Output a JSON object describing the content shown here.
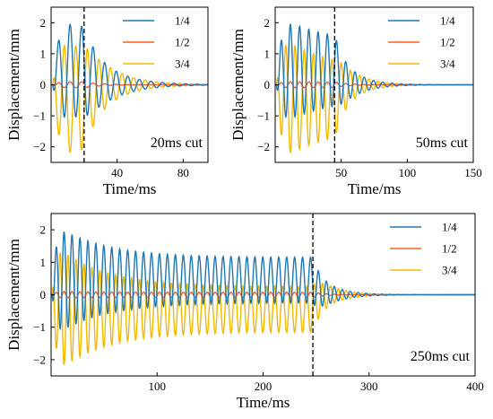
{
  "chart_data": [
    {
      "type": "line",
      "cut_ms": 20,
      "xlim": [
        0,
        95
      ],
      "ylim": [
        -2.5,
        2.5
      ],
      "xticks": [
        40,
        80
      ],
      "yticks": [
        -2,
        -1,
        0,
        1,
        2
      ],
      "xlabel": "Time/ms",
      "ylabel": "Displacement/mm",
      "annotation": "20ms cut",
      "dashed_line_x": 20,
      "legend_position": "top-right",
      "series": [
        {
          "name": "1/4",
          "color": "#1f77b4",
          "peak_positive": 2.1,
          "peak_negative": -1.1,
          "mean": 0.45,
          "steady_amplitude": 0.75,
          "decay_ms": 18
        },
        {
          "name": "1/2",
          "color": "#ff5f1f",
          "peak_positive": 0.1,
          "peak_negative": -0.1,
          "mean": 0.0,
          "steady_amplitude": 0.08,
          "decay_ms": 10
        },
        {
          "name": "3/4",
          "color": "#f5b800",
          "peak_positive": 1.6,
          "peak_negative": -2.1,
          "mean": -0.45,
          "steady_amplitude": 0.75,
          "decay_ms": 18
        }
      ]
    },
    {
      "type": "line",
      "cut_ms": 50,
      "xlim": [
        0,
        150
      ],
      "ylim": [
        -2.5,
        2.5
      ],
      "xticks": [
        50,
        100,
        150
      ],
      "yticks": [
        -2,
        -1,
        0,
        1,
        2
      ],
      "xlabel": "Time/ms",
      "ylabel": "Displacement/mm",
      "annotation": "50ms cut",
      "dashed_line_x": 45,
      "legend_position": "top-right",
      "series": [
        {
          "name": "1/4",
          "color": "#1f77b4",
          "peak_positive": 2.1,
          "peak_negative": -1.1,
          "mean": 0.45,
          "steady_amplitude": 0.75,
          "decay_ms": 15
        },
        {
          "name": "1/2",
          "color": "#ff5f1f",
          "peak_positive": 0.1,
          "peak_negative": -0.1,
          "mean": 0.0,
          "steady_amplitude": 0.08,
          "decay_ms": 10
        },
        {
          "name": "3/4",
          "color": "#f5b800",
          "peak_positive": 1.6,
          "peak_negative": -2.1,
          "mean": -0.45,
          "steady_amplitude": 0.75,
          "decay_ms": 15
        }
      ]
    },
    {
      "type": "line",
      "cut_ms": 250,
      "xlim": [
        0,
        400
      ],
      "ylim": [
        -2.5,
        2.5
      ],
      "xticks": [
        100,
        200,
        300,
        400
      ],
      "yticks": [
        -2,
        -1,
        0,
        1,
        2
      ],
      "xlabel": "Time/ms",
      "ylabel": "Displacement/mm",
      "annotation": "250ms cut",
      "dashed_line_x": 247,
      "legend_position": "top-right",
      "series": [
        {
          "name": "1/4",
          "color": "#1f77b4",
          "peak_positive": 2.1,
          "peak_negative": -1.1,
          "mean": 0.45,
          "steady_amplitude": 0.7,
          "decay_ms": 18
        },
        {
          "name": "1/2",
          "color": "#ff5f1f",
          "peak_positive": 0.1,
          "peak_negative": -0.1,
          "mean": 0.0,
          "steady_amplitude": 0.08,
          "decay_ms": 12
        },
        {
          "name": "3/4",
          "color": "#f5b800",
          "peak_positive": 1.6,
          "peak_negative": -2.1,
          "mean": -0.45,
          "steady_amplitude": 0.7,
          "decay_ms": 18
        }
      ]
    }
  ]
}
